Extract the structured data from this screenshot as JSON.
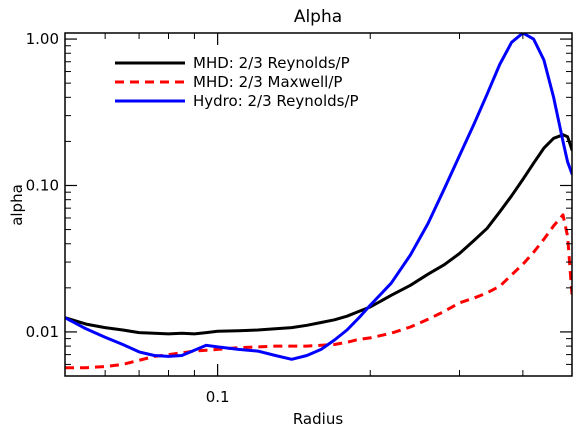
{
  "chart_data": {
    "type": "line",
    "title": "Alpha",
    "xlabel": "Radius",
    "ylabel": "alpha",
    "xscale": "log",
    "yscale": "log",
    "xlim": [
      0.05,
      0.5
    ],
    "ylim": [
      0.005,
      1.1
    ],
    "x_ticks": [
      {
        "value": 0.1,
        "label": "0.1"
      }
    ],
    "y_ticks": [
      {
        "value": 0.01,
        "label": "0.01"
      },
      {
        "value": 0.1,
        "label": "0.10"
      },
      {
        "value": 1.0,
        "label": "1.00"
      }
    ],
    "grid": false,
    "legend_position": "top-left",
    "series": [
      {
        "name": "MHD: 2/3 Reynolds/P",
        "color": "#000000",
        "style": "solid",
        "x": [
          0.05,
          0.055,
          0.06,
          0.065,
          0.07,
          0.075,
          0.08,
          0.085,
          0.09,
          0.095,
          0.1,
          0.11,
          0.12,
          0.13,
          0.14,
          0.15,
          0.16,
          0.17,
          0.18,
          0.19,
          0.2,
          0.22,
          0.24,
          0.26,
          0.28,
          0.3,
          0.32,
          0.34,
          0.36,
          0.38,
          0.4,
          0.42,
          0.44,
          0.46,
          0.48,
          0.49,
          0.5
        ],
        "y": [
          0.0125,
          0.0113,
          0.0107,
          0.0103,
          0.0099,
          0.0098,
          0.0097,
          0.0098,
          0.0097,
          0.0099,
          0.0101,
          0.0102,
          0.0103,
          0.0105,
          0.0107,
          0.0111,
          0.0116,
          0.0121,
          0.0128,
          0.0138,
          0.0148,
          0.0178,
          0.0208,
          0.0248,
          0.0288,
          0.0343,
          0.042,
          0.051,
          0.066,
          0.085,
          0.11,
          0.142,
          0.18,
          0.21,
          0.222,
          0.215,
          0.175
        ]
      },
      {
        "name": "MHD: 2/3 Maxwell/P",
        "color": "#ff0000",
        "style": "dashed",
        "x": [
          0.05,
          0.055,
          0.06,
          0.065,
          0.07,
          0.075,
          0.08,
          0.085,
          0.09,
          0.095,
          0.1,
          0.11,
          0.12,
          0.13,
          0.14,
          0.15,
          0.16,
          0.17,
          0.18,
          0.19,
          0.2,
          0.22,
          0.24,
          0.26,
          0.28,
          0.3,
          0.32,
          0.34,
          0.36,
          0.38,
          0.4,
          0.42,
          0.44,
          0.46,
          0.48,
          0.49,
          0.5
        ],
        "y": [
          0.0057,
          0.0057,
          0.0058,
          0.006,
          0.0064,
          0.0068,
          0.007,
          0.0072,
          0.0074,
          0.0075,
          0.0076,
          0.0078,
          0.0079,
          0.008,
          0.008,
          0.008,
          0.0081,
          0.0082,
          0.0085,
          0.0089,
          0.0091,
          0.0098,
          0.0108,
          0.0122,
          0.0138,
          0.0158,
          0.017,
          0.0185,
          0.0205,
          0.0245,
          0.029,
          0.035,
          0.043,
          0.053,
          0.063,
          0.045,
          0.018
        ]
      },
      {
        "name": "Hydro: 2/3 Reynolds/P",
        "color": "#0000ff",
        "style": "solid",
        "x": [
          0.05,
          0.055,
          0.06,
          0.065,
          0.07,
          0.075,
          0.08,
          0.085,
          0.09,
          0.095,
          0.1,
          0.11,
          0.12,
          0.13,
          0.14,
          0.15,
          0.16,
          0.17,
          0.18,
          0.19,
          0.2,
          0.22,
          0.24,
          0.26,
          0.28,
          0.3,
          0.32,
          0.34,
          0.36,
          0.38,
          0.4,
          0.42,
          0.44,
          0.46,
          0.48,
          0.49,
          0.5
        ],
        "y": [
          0.0125,
          0.0105,
          0.0092,
          0.0082,
          0.0073,
          0.0069,
          0.0068,
          0.0069,
          0.0075,
          0.0081,
          0.0079,
          0.0076,
          0.0074,
          0.0069,
          0.0065,
          0.0069,
          0.0076,
          0.0088,
          0.0103,
          0.0125,
          0.0152,
          0.0215,
          0.0335,
          0.055,
          0.095,
          0.16,
          0.26,
          0.42,
          0.67,
          0.95,
          1.1,
          1.0,
          0.72,
          0.4,
          0.2,
          0.145,
          0.12
        ]
      }
    ]
  }
}
